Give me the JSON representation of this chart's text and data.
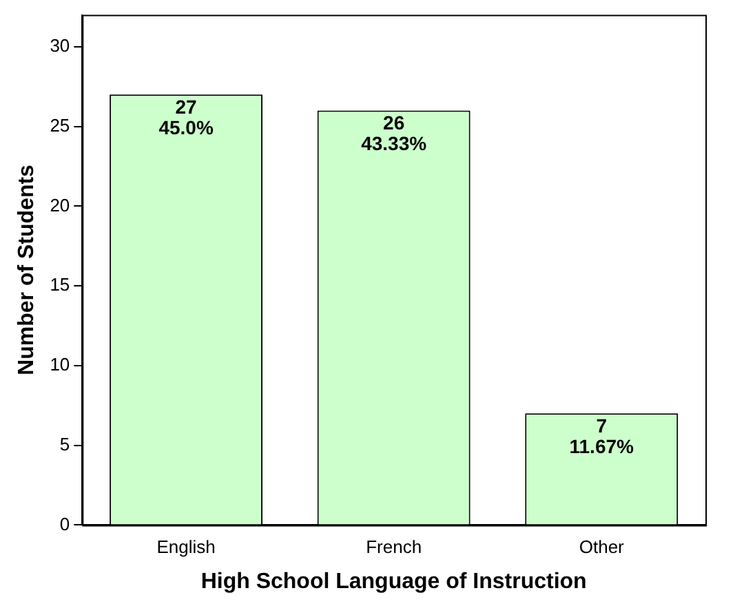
{
  "chart_data": {
    "type": "bar",
    "xlabel": "High School Language of Instruction",
    "ylabel": "Number of Students",
    "categories": [
      "English",
      "French",
      "Other"
    ],
    "values": [
      27,
      26,
      7
    ],
    "color": "#ccffcc",
    "value_labels": [
      "27\n45.0%",
      "26\n43.33%",
      "7\n11.67%"
    ],
    "ylim": [
      0,
      32
    ],
    "yticks": [
      0,
      5,
      10,
      15,
      20,
      25,
      30
    ],
    "grid": false,
    "legend": false
  }
}
